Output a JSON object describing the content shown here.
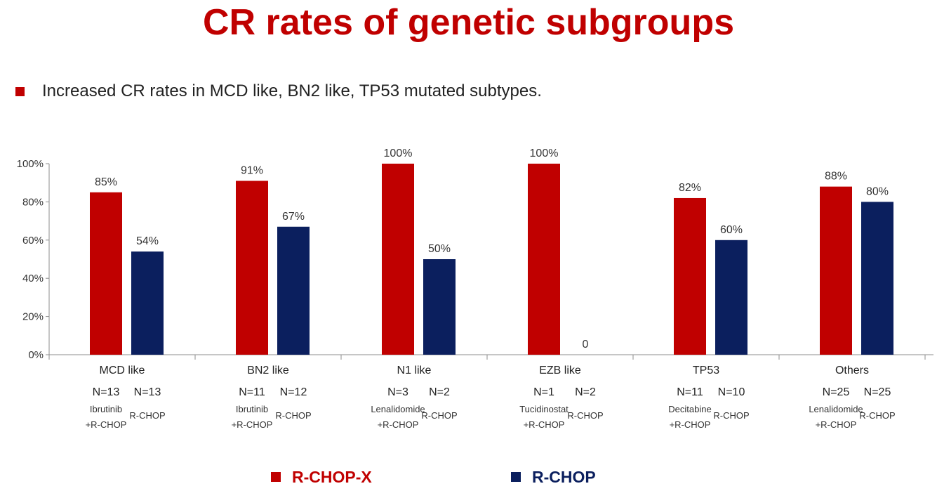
{
  "slide": {
    "title": "CR rates of genetic subgroups",
    "bullet": "Increased CR rates in MCD like, BN2 like, TP53 mutated subtypes."
  },
  "colors": {
    "accent": "#c00000",
    "series_a": "#c00000",
    "series_b": "#0b1f5e"
  },
  "chart_data": {
    "type": "bar",
    "title": "",
    "xlabel": "",
    "ylabel": "",
    "ylim": [
      0,
      100
    ],
    "y_ticks": [
      "0%",
      "20%",
      "40%",
      "60%",
      "80%",
      "100%"
    ],
    "categories": [
      "MCD like",
      "BN2 like",
      "N1 like",
      "EZB like",
      "TP53",
      "Others"
    ],
    "series": [
      {
        "name": "R-CHOP-X",
        "values": [
          85,
          91,
          100,
          100,
          82,
          88
        ],
        "labels": [
          "85%",
          "91%",
          "100%",
          "100%",
          "82%",
          "88%"
        ],
        "n": [
          "N=13",
          "N=11",
          "N=3",
          "N=1",
          "N=11",
          "N=25"
        ],
        "treatment": [
          [
            "Ibrutinib",
            "+R-CHOP"
          ],
          [
            "Ibrutinib",
            "+R-CHOP"
          ],
          [
            "Lenalidomide",
            "+R-CHOP"
          ],
          [
            "Tucidinostat",
            "+R-CHOP"
          ],
          [
            "Decitabine",
            "+R-CHOP"
          ],
          [
            "Lenalidomide",
            "+R-CHOP"
          ]
        ]
      },
      {
        "name": "R-CHOP",
        "values": [
          54,
          67,
          50,
          0,
          60,
          80
        ],
        "labels": [
          "54%",
          "67%",
          "50%",
          "0",
          "60%",
          "80%"
        ],
        "n": [
          "N=13",
          "N=12",
          "N=2",
          "N=2",
          "N=10",
          "N=25"
        ],
        "treatment": [
          [
            "R-CHOP"
          ],
          [
            "R-CHOP"
          ],
          [
            "R-CHOP"
          ],
          [
            "R-CHOP"
          ],
          [
            "R-CHOP"
          ],
          [
            "R-CHOP"
          ]
        ]
      }
    ],
    "legend": [
      "R-CHOP-X",
      "R-CHOP"
    ],
    "legend_position": "bottom"
  }
}
